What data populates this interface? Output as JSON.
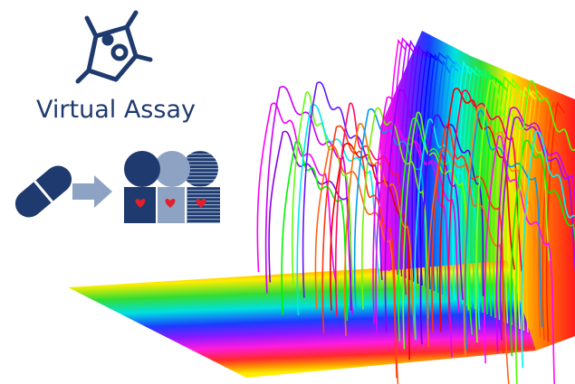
{
  "title": "Virtual Assay"
}
